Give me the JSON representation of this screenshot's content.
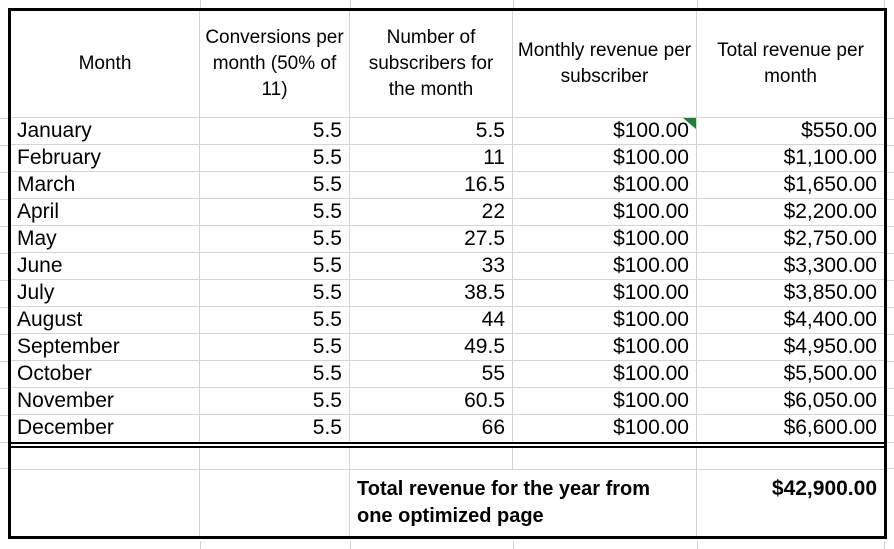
{
  "sheet": {
    "header": {
      "columns": [
        {
          "label": "Month"
        },
        {
          "label": "Conversions per month (50% of 11)"
        },
        {
          "label": "Number of subscribers for the month"
        },
        {
          "label": "Monthly revenue per subscriber"
        },
        {
          "label": "Total revenue per month"
        }
      ]
    },
    "rows": [
      [
        "January",
        "5.5",
        "5.5",
        "$100.00",
        "$550.00"
      ],
      [
        "February",
        "5.5",
        "11",
        "$100.00",
        "$1,100.00"
      ],
      [
        "March",
        "5.5",
        "16.5",
        "$100.00",
        "$1,650.00"
      ],
      [
        "April",
        "5.5",
        "22",
        "$100.00",
        "$2,200.00"
      ],
      [
        "May",
        "5.5",
        "27.5",
        "$100.00",
        "$2,750.00"
      ],
      [
        "June",
        "5.5",
        "33",
        "$100.00",
        "$3,300.00"
      ],
      [
        "July",
        "5.5",
        "38.5",
        "$100.00",
        "$3,850.00"
      ],
      [
        "August",
        "5.5",
        "44",
        "$100.00",
        "$4,400.00"
      ],
      [
        "September",
        "5.5",
        "49.5",
        "$100.00",
        "$4,950.00"
      ],
      [
        "October",
        "5.5",
        "55",
        "$100.00",
        "$5,500.00"
      ],
      [
        "November",
        "5.5",
        "60.5",
        "$100.00",
        "$6,050.00"
      ],
      [
        "December",
        "5.5",
        "66",
        "$100.00",
        "$6,600.00"
      ]
    ],
    "note_marker": {
      "row": "January",
      "column": "Monthly revenue per subscriber",
      "color": "#1e7e34"
    },
    "summary": {
      "label": "Total revenue for the year from one optimized page",
      "value": "$42,900.00"
    },
    "colors": {
      "gridline": "#d4d4d4",
      "border": "#000000",
      "marker_green": "#1e7e34"
    }
  }
}
